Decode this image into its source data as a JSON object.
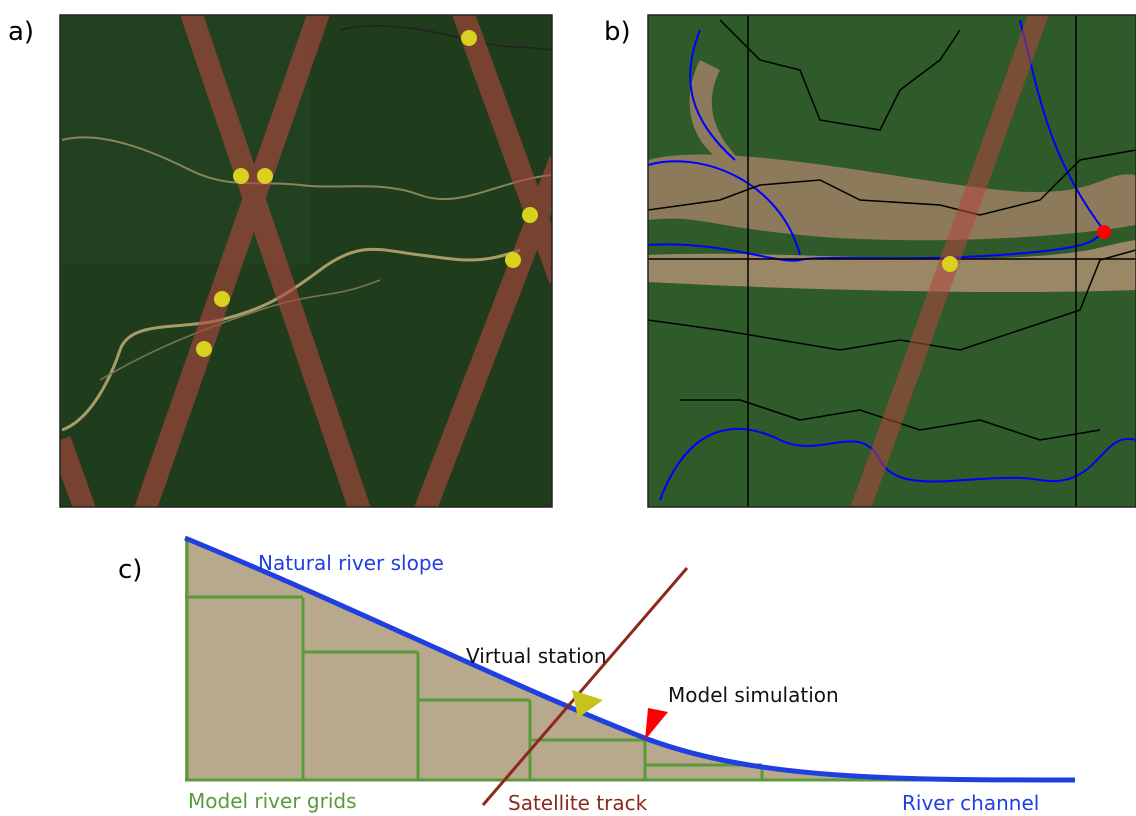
{
  "panel_a": {
    "label": "a)"
  },
  "panel_b": {
    "label": "b)"
  },
  "panel_c": {
    "label": "c)",
    "labels": {
      "slope": "Natural river slope",
      "station": "Virtual station",
      "simulation": "Model simulation",
      "grids": "Model river grids",
      "track": "Satellite track",
      "channel": "River channel"
    }
  }
}
